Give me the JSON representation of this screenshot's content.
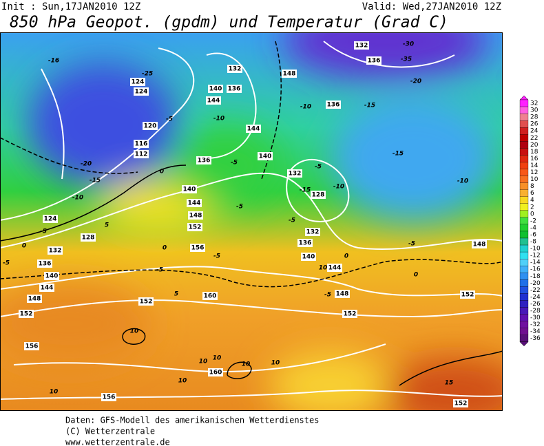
{
  "header": {
    "init": "Init : Sun,17JAN2010 12Z",
    "valid": "Valid: Wed,27JAN2010 12Z",
    "title": "850 hPa Geopot. (gpdm) und Temperatur (Grad C)"
  },
  "colorbar": {
    "labels": [
      32,
      30,
      28,
      26,
      24,
      22,
      20,
      18,
      16,
      14,
      12,
      10,
      8,
      6,
      4,
      2,
      0,
      -2,
      -4,
      -6,
      -8,
      -10,
      -12,
      -14,
      -16,
      -18,
      -20,
      -22,
      -24,
      -26,
      -28,
      -30,
      -32,
      -34,
      -36
    ]
  },
  "map": {
    "contour_labels": [
      -16,
      -25,
      124,
      124,
      -5,
      120,
      116,
      112,
      -20,
      -15,
      -10,
      124,
      -5,
      128,
      132,
      136,
      140,
      144,
      148,
      152,
      156,
      156,
      10,
      -5,
      0,
      5,
      0,
      140,
      144,
      148,
      152,
      156,
      -5,
      0,
      -5,
      5,
      152,
      160,
      10,
      10,
      10,
      10,
      10,
      160,
      10,
      136,
      -5,
      140,
      144,
      140,
      144,
      -10,
      136,
      132,
      148,
      -10,
      136,
      -15,
      -20,
      132,
      -30,
      136,
      -35,
      -15,
      -10,
      132,
      -5,
      -15,
      128,
      -10,
      -5,
      -5,
      132,
      136,
      140,
      10,
      144,
      0,
      -5,
      148,
      0,
      152,
      148,
      152,
      15,
      152,
      -5
    ]
  },
  "footer": {
    "lines": [
      "Daten: GFS-Modell des amerikanischen Wetterdienstes",
      "(C) Wetterzentrale",
      "www.wetterzentrale.de"
    ]
  }
}
